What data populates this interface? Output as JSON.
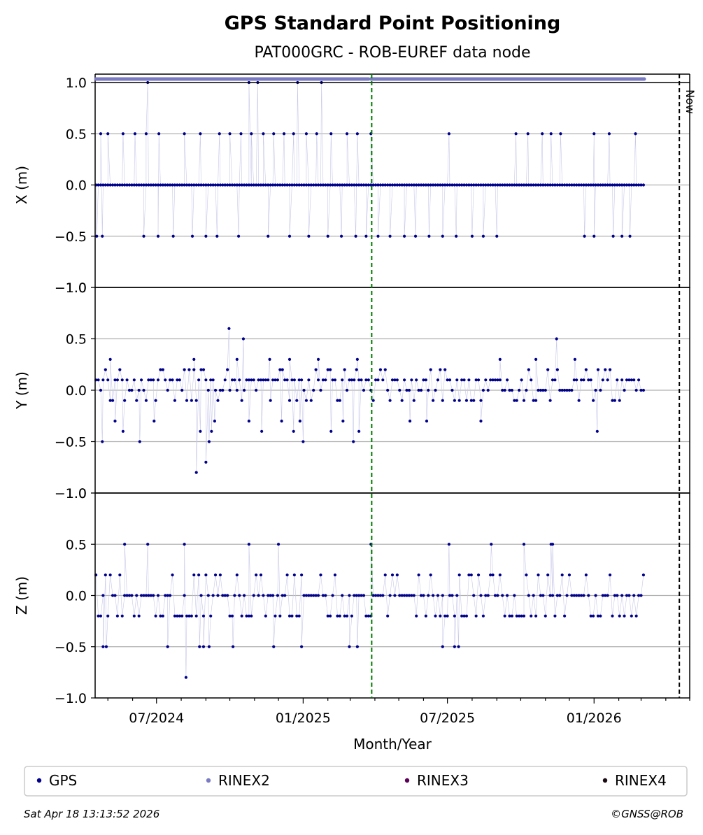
{
  "header": {
    "title": "GPS Standard Point Positioning",
    "subtitle": "PAT000GRC - ROB-EUREF data node"
  },
  "footer": {
    "timestamp": "Sat Apr 18 13:13:52 2026",
    "copyright": "©GNSS@ROB"
  },
  "colors": {
    "gps": "#00008b",
    "rinex2": "#7b7bc4",
    "rinex3": "#5a0057",
    "rinex4": "#1a0a12",
    "event_line": "#007a00",
    "grid": "#b0b0b0"
  },
  "chart_data": {
    "type": "scatter",
    "xlabel": "Month/Year",
    "x_ticks": [
      "07/2024",
      "01/2025",
      "07/2025",
      "01/2026"
    ],
    "x_tick_dates": [
      "2024-07-01",
      "2025-01-01",
      "2025-07-01",
      "2026-01-01"
    ],
    "x_range": [
      "2024-04-15",
      "2026-05-01"
    ],
    "now_label": "Now",
    "now_date": "2026-04-18",
    "event_date": "2025-03-28",
    "y_ticks": [
      "−1.0",
      "−0.5",
      "0.0",
      "0.5",
      "1.0"
    ],
    "y_tick_values": [
      -1.0,
      -0.5,
      0.0,
      0.5,
      1.0
    ],
    "grid": true,
    "legend_placement": "bottom",
    "legend": [
      {
        "label": "GPS",
        "color": "#00008b"
      },
      {
        "label": "RINEX2",
        "color": "#7b7bc4"
      },
      {
        "label": "RINEX3",
        "color": "#5a0057"
      },
      {
        "label": "RINEX4",
        "color": "#1a0a12"
      }
    ],
    "rinex2_availability": [
      {
        "start": "2024-04-16",
        "end": "2025-03-24"
      },
      {
        "start": "2025-03-27",
        "end": "2026-03-05"
      }
    ],
    "data_start": "2024-04-16",
    "data_end": "2026-03-05",
    "panels": [
      {
        "ylabel": "X (m)",
        "ylim": [
          -1.0,
          1.0
        ],
        "outliers": [
          {
            "date": "2024-06-20",
            "value": 1.0
          },
          {
            "date": "2024-10-25",
            "value": 1.0
          },
          {
            "date": "2024-11-05",
            "value": 1.0
          },
          {
            "date": "2024-12-25",
            "value": 1.0
          },
          {
            "date": "2025-01-24",
            "value": 1.0
          },
          {
            "date": "2024-04-22",
            "value": 0.5
          },
          {
            "date": "2024-05-01",
            "value": 0.5
          },
          {
            "date": "2024-05-20",
            "value": 0.5
          },
          {
            "date": "2024-06-04",
            "value": 0.5
          },
          {
            "date": "2024-06-18",
            "value": 0.5
          },
          {
            "date": "2024-07-04",
            "value": 0.5
          },
          {
            "date": "2024-08-05",
            "value": 0.5
          },
          {
            "date": "2024-08-25",
            "value": 0.5
          },
          {
            "date": "2024-09-18",
            "value": 0.5
          },
          {
            "date": "2024-10-01",
            "value": 0.5
          },
          {
            "date": "2024-10-15",
            "value": 0.5
          },
          {
            "date": "2024-10-28",
            "value": 0.5
          },
          {
            "date": "2024-11-12",
            "value": 0.5
          },
          {
            "date": "2024-11-25",
            "value": 0.5
          },
          {
            "date": "2024-12-08",
            "value": 0.5
          },
          {
            "date": "2024-12-20",
            "value": 0.5
          },
          {
            "date": "2025-01-05",
            "value": 0.5
          },
          {
            "date": "2025-01-18",
            "value": 0.5
          },
          {
            "date": "2025-02-05",
            "value": 0.5
          },
          {
            "date": "2025-02-25",
            "value": 0.5
          },
          {
            "date": "2025-03-10",
            "value": 0.5
          },
          {
            "date": "2025-03-27",
            "value": 0.5
          },
          {
            "date": "2025-07-03",
            "value": 0.5
          },
          {
            "date": "2025-09-25",
            "value": 0.5
          },
          {
            "date": "2025-10-10",
            "value": 0.5
          },
          {
            "date": "2025-10-28",
            "value": 0.5
          },
          {
            "date": "2025-11-08",
            "value": 0.5
          },
          {
            "date": "2025-11-20",
            "value": 0.5
          },
          {
            "date": "2026-01-01",
            "value": 0.5
          },
          {
            "date": "2026-01-20",
            "value": 0.5
          },
          {
            "date": "2026-02-22",
            "value": 0.5
          },
          {
            "date": "2024-04-17",
            "value": -0.5
          },
          {
            "date": "2024-04-24",
            "value": -0.5
          },
          {
            "date": "2024-06-15",
            "value": -0.5
          },
          {
            "date": "2024-07-03",
            "value": -0.5
          },
          {
            "date": "2024-07-22",
            "value": -0.5
          },
          {
            "date": "2024-08-15",
            "value": -0.5
          },
          {
            "date": "2024-09-01",
            "value": -0.5
          },
          {
            "date": "2024-09-15",
            "value": -0.5
          },
          {
            "date": "2024-10-12",
            "value": -0.5
          },
          {
            "date": "2024-11-18",
            "value": -0.5
          },
          {
            "date": "2024-12-15",
            "value": -0.5
          },
          {
            "date": "2025-01-08",
            "value": -0.5
          },
          {
            "date": "2025-02-01",
            "value": -0.5
          },
          {
            "date": "2025-02-18",
            "value": -0.5
          },
          {
            "date": "2025-03-08",
            "value": -0.5
          },
          {
            "date": "2025-03-21",
            "value": -0.5
          },
          {
            "date": "2025-04-05",
            "value": -0.5
          },
          {
            "date": "2025-04-20",
            "value": -0.5
          },
          {
            "date": "2025-05-08",
            "value": -0.5
          },
          {
            "date": "2025-05-22",
            "value": -0.5
          },
          {
            "date": "2025-06-08",
            "value": -0.5
          },
          {
            "date": "2025-06-25",
            "value": -0.5
          },
          {
            "date": "2025-07-12",
            "value": -0.5
          },
          {
            "date": "2025-08-01",
            "value": -0.5
          },
          {
            "date": "2025-08-15",
            "value": -0.5
          },
          {
            "date": "2025-09-01",
            "value": -0.5
          },
          {
            "date": "2025-12-20",
            "value": -0.5
          },
          {
            "date": "2026-01-01",
            "value": -0.5
          },
          {
            "date": "2026-01-25",
            "value": -0.5
          },
          {
            "date": "2026-02-05",
            "value": -0.5
          },
          {
            "date": "2026-02-15",
            "value": -0.5
          }
        ]
      },
      {
        "ylabel": "Y (m)",
        "ylim": [
          -1.0,
          1.0
        ],
        "outliers": [
          {
            "date": "2024-09-30",
            "value": 0.6
          },
          {
            "date": "2024-10-18",
            "value": 0.5
          },
          {
            "date": "2025-11-15",
            "value": 0.5
          },
          {
            "date": "2024-05-04",
            "value": 0.3
          },
          {
            "date": "2024-08-17",
            "value": 0.3
          },
          {
            "date": "2024-10-10",
            "value": 0.3
          },
          {
            "date": "2024-11-20",
            "value": 0.3
          },
          {
            "date": "2024-12-15",
            "value": 0.3
          },
          {
            "date": "2025-01-20",
            "value": 0.3
          },
          {
            "date": "2025-03-10",
            "value": 0.3
          },
          {
            "date": "2025-09-05",
            "value": 0.3
          },
          {
            "date": "2025-10-20",
            "value": 0.3
          },
          {
            "date": "2025-12-08",
            "value": 0.3
          },
          {
            "date": "2024-04-24",
            "value": -0.5
          },
          {
            "date": "2024-05-10",
            "value": -0.3
          },
          {
            "date": "2024-05-20",
            "value": -0.4
          },
          {
            "date": "2024-06-10",
            "value": -0.5
          },
          {
            "date": "2024-06-28",
            "value": -0.3
          },
          {
            "date": "2024-08-20",
            "value": -0.8
          },
          {
            "date": "2024-08-25",
            "value": -0.4
          },
          {
            "date": "2024-09-01",
            "value": -0.7
          },
          {
            "date": "2024-09-05",
            "value": -0.5
          },
          {
            "date": "2024-09-08",
            "value": -0.4
          },
          {
            "date": "2024-09-12",
            "value": -0.3
          },
          {
            "date": "2024-10-25",
            "value": -0.3
          },
          {
            "date": "2024-11-10",
            "value": -0.4
          },
          {
            "date": "2024-12-05",
            "value": -0.3
          },
          {
            "date": "2024-12-20",
            "value": -0.4
          },
          {
            "date": "2024-12-28",
            "value": -0.3
          },
          {
            "date": "2025-01-01",
            "value": -0.5
          },
          {
            "date": "2025-02-05",
            "value": -0.4
          },
          {
            "date": "2025-02-20",
            "value": -0.3
          },
          {
            "date": "2025-03-05",
            "value": -0.5
          },
          {
            "date": "2025-03-12",
            "value": -0.4
          },
          {
            "date": "2025-05-15",
            "value": -0.3
          },
          {
            "date": "2025-06-05",
            "value": -0.3
          },
          {
            "date": "2025-08-12",
            "value": -0.3
          },
          {
            "date": "2026-01-05",
            "value": -0.4
          }
        ]
      },
      {
        "ylabel": "Z (m)",
        "ylim": [
          -1.0,
          1.0
        ],
        "outliers": [
          {
            "date": "2024-05-22",
            "value": 0.5
          },
          {
            "date": "2024-06-20",
            "value": 0.5
          },
          {
            "date": "2024-08-05",
            "value": 0.5
          },
          {
            "date": "2024-10-25",
            "value": 0.5
          },
          {
            "date": "2024-12-01",
            "value": 0.5
          },
          {
            "date": "2025-03-27",
            "value": 0.5
          },
          {
            "date": "2025-07-03",
            "value": 0.5
          },
          {
            "date": "2025-08-25",
            "value": 0.5
          },
          {
            "date": "2025-10-05",
            "value": 0.5
          },
          {
            "date": "2025-11-08",
            "value": 0.5
          },
          {
            "date": "2025-11-10",
            "value": 0.5
          },
          {
            "date": "2024-04-25",
            "value": -0.5
          },
          {
            "date": "2024-04-29",
            "value": -0.5
          },
          {
            "date": "2024-07-15",
            "value": -0.5
          },
          {
            "date": "2024-08-07",
            "value": -0.8
          },
          {
            "date": "2024-08-24",
            "value": -0.5
          },
          {
            "date": "2024-08-29",
            "value": -0.5
          },
          {
            "date": "2024-09-05",
            "value": -0.5
          },
          {
            "date": "2024-10-05",
            "value": -0.5
          },
          {
            "date": "2024-11-25",
            "value": -0.5
          },
          {
            "date": "2024-12-30",
            "value": -0.5
          },
          {
            "date": "2025-02-28",
            "value": -0.5
          },
          {
            "date": "2025-03-10",
            "value": -0.5
          },
          {
            "date": "2025-06-25",
            "value": -0.5
          },
          {
            "date": "2025-07-10",
            "value": -0.5
          },
          {
            "date": "2025-07-15",
            "value": -0.5
          }
        ]
      }
    ]
  }
}
